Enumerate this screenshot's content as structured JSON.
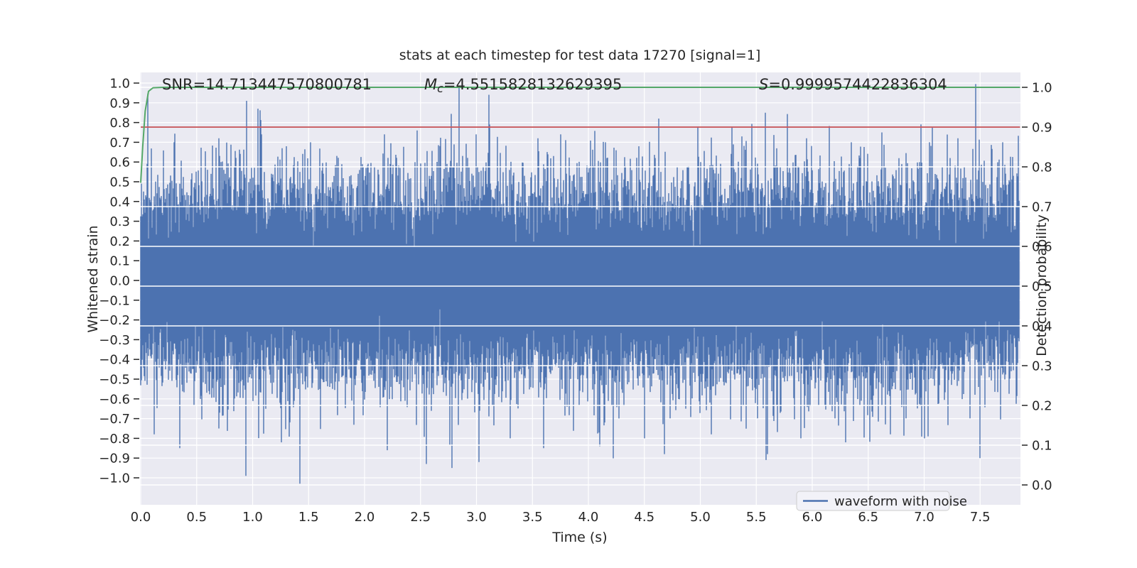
{
  "figure": {
    "title": "stats at each timestep for test data 17270 [signal=1]"
  },
  "annotations": {
    "snr": "SNR=14.713447570800781",
    "mc_symbol": "M",
    "mc_sub": "c",
    "mc_value": "=4.5515828132629395",
    "s_symbol": "S",
    "s_value": "=0.9999574422836304"
  },
  "axes": {
    "x": {
      "label": "Time (s)",
      "tick_values": [
        0.0,
        0.5,
        1.0,
        1.5,
        2.0,
        2.5,
        3.0,
        3.5,
        4.0,
        4.5,
        5.0,
        5.5,
        6.0,
        6.5,
        7.0,
        7.5
      ],
      "tick_labels": [
        "0.0",
        "0.5",
        "1.0",
        "1.5",
        "2.0",
        "2.5",
        "3.0",
        "3.5",
        "4.0",
        "4.5",
        "5.0",
        "5.5",
        "6.0",
        "6.5",
        "7.0",
        "7.5"
      ]
    },
    "y_left": {
      "label": "Whitened strain",
      "tick_values": [
        1.0,
        0.9,
        0.8,
        0.7,
        0.6,
        0.5,
        0.4,
        0.3,
        0.2,
        0.1,
        0.0,
        -0.1,
        -0.2,
        -0.3,
        -0.4,
        -0.5,
        -0.6,
        -0.7,
        -0.8,
        -0.9,
        -1.0
      ],
      "tick_labels": [
        "1.0",
        "0.9",
        "0.8",
        "0.7",
        "0.6",
        "0.5",
        "0.4",
        "0.3",
        "0.2",
        "0.1",
        "0.0",
        "−0.1",
        "−0.2",
        "−0.3",
        "−0.4",
        "−0.5",
        "−0.6",
        "−0.7",
        "−0.8",
        "−0.9",
        "−1.0"
      ]
    },
    "y_right": {
      "label": "Detection probability",
      "tick_values": [
        1.0,
        0.9,
        0.8,
        0.7,
        0.6,
        0.5,
        0.4,
        0.3,
        0.2,
        0.1,
        0.0
      ],
      "tick_labels": [
        "1.0",
        "0.9",
        "0.8",
        "0.7",
        "0.6",
        "0.5",
        "0.4",
        "0.3",
        "0.2",
        "0.1",
        "0.0"
      ]
    }
  },
  "legend": {
    "label": "waveform with noise"
  },
  "colors": {
    "waveform": "#4c72b0",
    "detection": "#55a868",
    "threshold": "#c44e52",
    "plot_background": "#eaeaf2",
    "grid": "#ffffff",
    "text": "#262626",
    "legend_face": "#f2f2f8",
    "legend_edge": "#cccccc"
  },
  "chart_data": {
    "type": "line",
    "title": "stats at each timestep for test data 17270 [signal=1]",
    "xlabel": "Time (s)",
    "ylabel_left": "Whitened strain",
    "ylabel_right": "Detection probability",
    "xlim": [
      0.0,
      7.86
    ],
    "ylim_left": [
      -1.14,
      1.05
    ],
    "ylim_right": [
      -0.05,
      1.04
    ],
    "grid": true,
    "legend_position": "lower right",
    "stats": {
      "SNR": 14.713447570800781,
      "Mc": 4.5515828132629395,
      "S": 0.9999574422836304,
      "signal": 1,
      "test_data_id": 17270
    },
    "series": [
      {
        "name": "waveform with noise",
        "axis": "left",
        "color": "#4c72b0",
        "kind": "dense-noise-envelope",
        "description": "Zero-mean whitened strain noise spanning 0-7.86 s; dense solid core about ±0.3, typical spike envelope ±0.6, extremes reaching ±1.0",
        "sigma": 0.21,
        "samples_per_column": 26,
        "notable_peaks": [
          [
            0.3,
            0.7
          ],
          [
            0.7,
            0.72
          ],
          [
            0.945,
            0.91
          ],
          [
            1.05,
            0.87
          ],
          [
            1.3,
            0.68
          ],
          [
            1.52,
            0.7
          ],
          [
            2.18,
            0.74
          ],
          [
            2.47,
            0.76
          ],
          [
            2.845,
            0.975
          ],
          [
            3.12,
            0.79
          ],
          [
            3.55,
            0.72
          ],
          [
            3.75,
            0.74
          ],
          [
            4.15,
            0.7
          ],
          [
            4.45,
            0.68
          ],
          [
            4.98,
            0.78
          ],
          [
            5.28,
            0.78
          ],
          [
            5.58,
            0.85
          ],
          [
            5.95,
            0.72
          ],
          [
            6.35,
            0.7
          ],
          [
            6.62,
            0.75
          ],
          [
            7.05,
            0.7
          ],
          [
            7.3,
            0.72
          ],
          [
            7.46,
            0.995
          ],
          [
            7.7,
            0.7
          ],
          [
            0.12,
            -0.78
          ],
          [
            0.35,
            -0.85
          ],
          [
            0.7,
            -0.75
          ],
          [
            0.94,
            -0.99
          ],
          [
            1.26,
            -0.82
          ],
          [
            1.42,
            -1.03
          ],
          [
            2.2,
            -0.86
          ],
          [
            2.55,
            -0.93
          ],
          [
            2.78,
            -0.95
          ],
          [
            3.02,
            -0.92
          ],
          [
            3.3,
            -0.8
          ],
          [
            3.6,
            -0.85
          ],
          [
            4.1,
            -0.84
          ],
          [
            4.5,
            -0.8
          ],
          [
            4.68,
            -0.88
          ],
          [
            5.1,
            -0.78
          ],
          [
            5.6,
            -0.88
          ],
          [
            5.9,
            -0.8
          ],
          [
            6.3,
            -0.82
          ],
          [
            6.7,
            -0.78
          ],
          [
            7.0,
            -0.8
          ],
          [
            7.5,
            -0.9
          ]
        ]
      },
      {
        "name": "detection probability",
        "axis": "right",
        "color": "#55a868",
        "points": [
          [
            0.0,
            0.76
          ],
          [
            0.018,
            0.85
          ],
          [
            0.04,
            0.94
          ],
          [
            0.07,
            0.99
          ],
          [
            0.11,
            0.999
          ],
          [
            0.2,
            1.0
          ],
          [
            7.857,
            1.0
          ]
        ]
      },
      {
        "name": "detection threshold",
        "axis": "right",
        "color": "#c44e52",
        "points": [
          [
            0.0,
            0.9
          ],
          [
            7.857,
            0.9
          ]
        ]
      }
    ]
  }
}
